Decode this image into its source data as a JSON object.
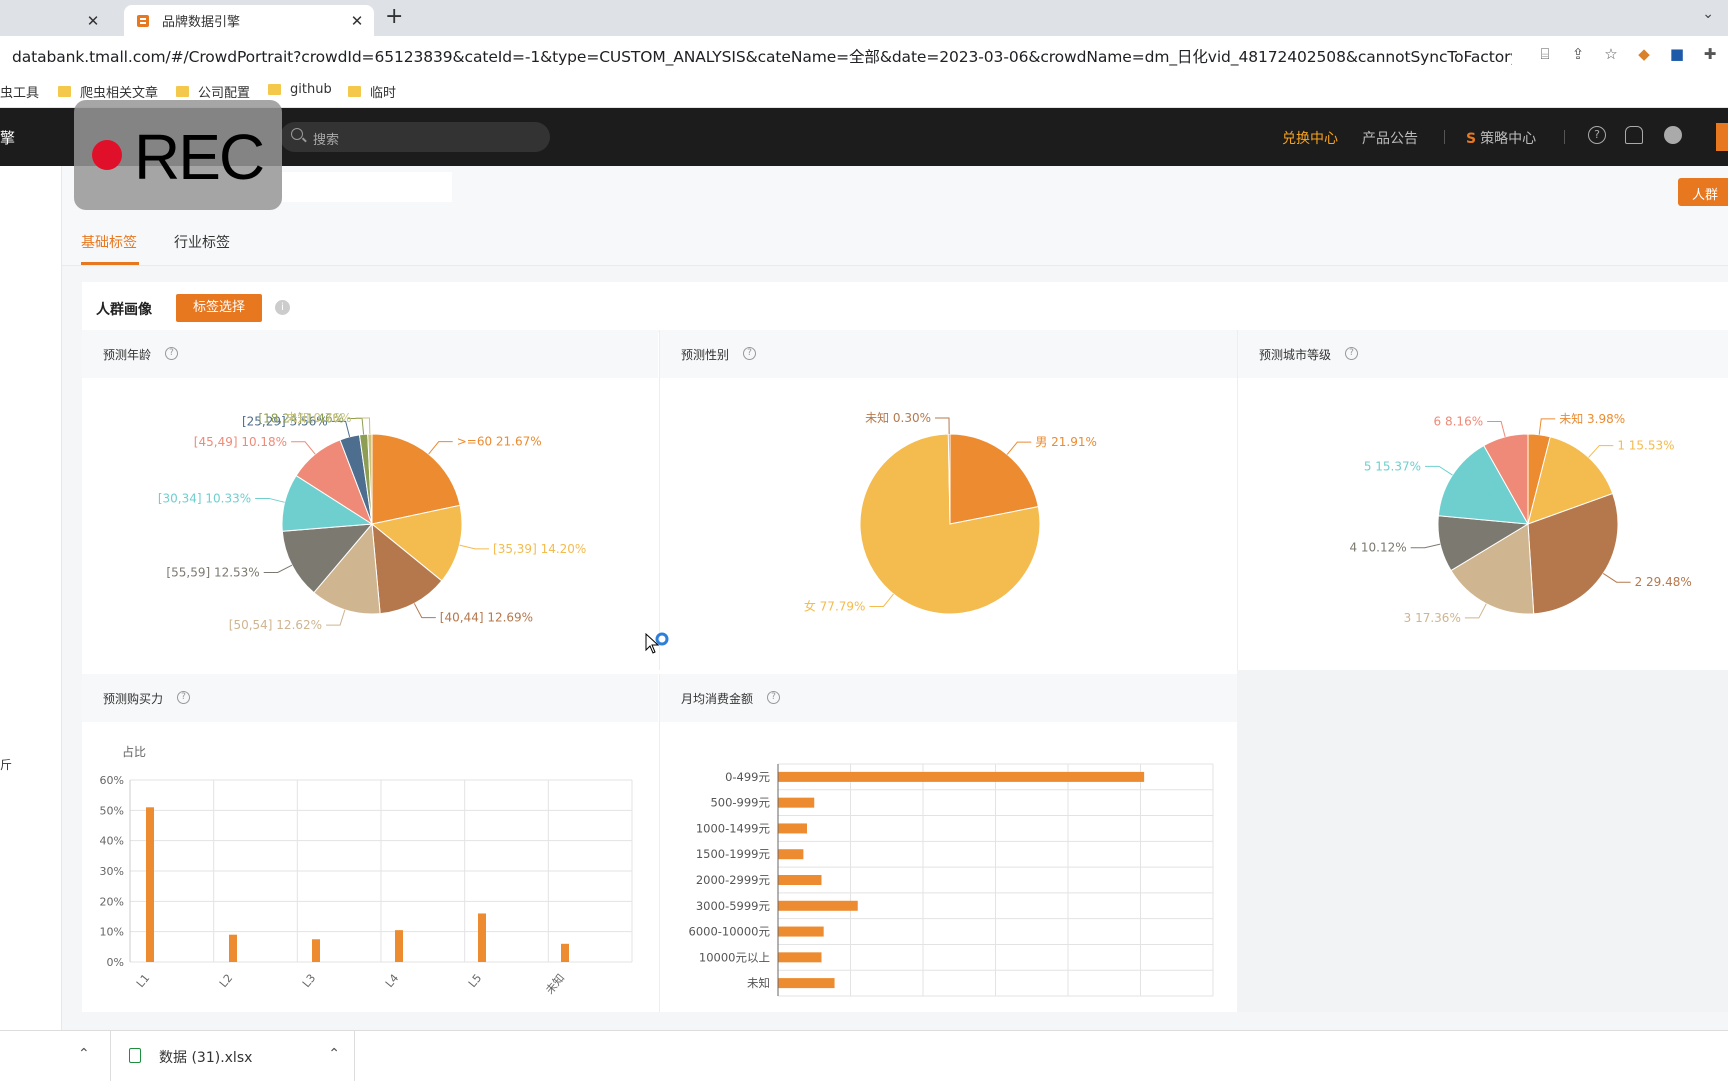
{
  "browser": {
    "tabs": [
      {
        "title": "",
        "active": false
      },
      {
        "title": "品牌数据引擎",
        "active": true
      }
    ],
    "url": "databank.tmall.com/#/CrowdPortrait?crowdId=65123839&cateId=-1&type=CUSTOM_ANALYSIS&cateName=全部&date=2023-03-06&crowdName=dm_日化vid_48172402508&cannotSyncToFactory=false&isReco...",
    "bookmarks": [
      "虫工具",
      "爬虫相关文章",
      "公司配置",
      "github",
      "临时"
    ]
  },
  "nav": {
    "brand": "擎",
    "search_placeholder": "搜索",
    "links": [
      "兑换中心",
      "产品公告",
      "策略中心"
    ],
    "accent_color": "#f7a21e"
  },
  "overlay": {
    "rec_label": "REC"
  },
  "header": {
    "crowd_button": "人群"
  },
  "tabs": [
    "基础标签",
    "行业标签"
  ],
  "portrait": {
    "title": "人群画像",
    "tag_button": "标签选择"
  },
  "panels": {
    "age": "预测年龄",
    "gender": "预测性别",
    "city": "预测城市等级",
    "purchase": "预测购买力",
    "spend": "月均消费金额"
  },
  "sidebar": {
    "mark": "斤"
  },
  "downloads": {
    "file": "数据 (31).xlsx"
  },
  "chart_data": [
    {
      "type": "pie",
      "title": "预测年龄",
      "slices": [
        {
          "label": ">=60",
          "value": 21.67,
          "text": ">=60 21.67%",
          "color": "#ec8b30"
        },
        {
          "label": "[35,39]",
          "value": 14.2,
          "text": "[35,39] 14.20%",
          "color": "#f4bb4e"
        },
        {
          "label": "[40,44]",
          "value": 12.69,
          "text": "[40,44] 12.69%",
          "color": "#b5784d"
        },
        {
          "label": "[50,54]",
          "value": 12.62,
          "text": "[50,54] 12.62%",
          "color": "#cfb590"
        },
        {
          "label": "[55,59]",
          "value": 12.53,
          "text": "[55,59] 12.53%",
          "color": "#7c7a70"
        },
        {
          "label": "[30,34]",
          "value": 10.33,
          "text": "[30,34] 10.33%",
          "color": "#6fcfcf"
        },
        {
          "label": "[45,49]",
          "value": 10.18,
          "text": "[45,49] 10.18%",
          "color": "#ef8a78"
        },
        {
          "label": "[25,29]",
          "value": 3.56,
          "text": "[25,29] 3.56%",
          "color": "#4d6e8e"
        },
        {
          "label": "[18,24]",
          "value": 1.46,
          "text": "[18,24] 1.46%",
          "color": "#8d9e54"
        },
        {
          "label": "未知",
          "value": 0.76,
          "text": "未知 0.76%",
          "color": "#c9c37a"
        }
      ]
    },
    {
      "type": "pie",
      "title": "预测性别",
      "slices": [
        {
          "label": "男",
          "value": 21.91,
          "text": "男 21.91%",
          "color": "#ec8b30"
        },
        {
          "label": "女",
          "value": 77.79,
          "text": "女 77.79%",
          "color": "#f4bb4e"
        },
        {
          "label": "未知",
          "value": 0.3,
          "text": "未知 0.30%",
          "color": "#b5784d"
        }
      ]
    },
    {
      "type": "pie",
      "title": "预测城市等级",
      "slices": [
        {
          "label": "未知",
          "value": 3.98,
          "text": "未知 3.98%",
          "color": "#ec8b30"
        },
        {
          "label": "1",
          "value": 15.53,
          "text": "1 15.53%",
          "color": "#f4bb4e"
        },
        {
          "label": "2",
          "value": 29.48,
          "text": "2 29.48%",
          "color": "#b5784d"
        },
        {
          "label": "3",
          "value": 17.36,
          "text": "3 17.36%",
          "color": "#cfb590"
        },
        {
          "label": "4",
          "value": 10.12,
          "text": "4 10.12%",
          "color": "#7c7a70"
        },
        {
          "label": "5",
          "value": 15.37,
          "text": "5 15.37%",
          "color": "#6fcfcf"
        },
        {
          "label": "6",
          "value": 8.16,
          "text": "6 8.16%",
          "color": "#ef8a78"
        }
      ]
    },
    {
      "type": "bar",
      "title": "预测购买力",
      "ylabel": "占比",
      "categories": [
        "L1",
        "L2",
        "L3",
        "L4",
        "L5",
        "未知"
      ],
      "values": [
        51,
        9,
        7.5,
        10.5,
        16,
        6
      ],
      "ylim": [
        0,
        60
      ],
      "yticks": [
        "0%",
        "10%",
        "20%",
        "30%",
        "40%",
        "50%",
        "60%"
      ],
      "color": "#ec8b30"
    },
    {
      "type": "bar",
      "orientation": "horizontal",
      "title": "月均消费金额",
      "categories": [
        "0-499元",
        "500-999元",
        "1000-1499元",
        "1500-1999元",
        "2000-2999元",
        "3000-5999元",
        "6000-10000元",
        "10000元以上",
        "未知"
      ],
      "values": [
        50.5,
        5,
        4,
        3.5,
        6,
        11,
        6.3,
        6,
        7.8
      ],
      "xlim": [
        0,
        60
      ],
      "color": "#ec8b30"
    }
  ]
}
